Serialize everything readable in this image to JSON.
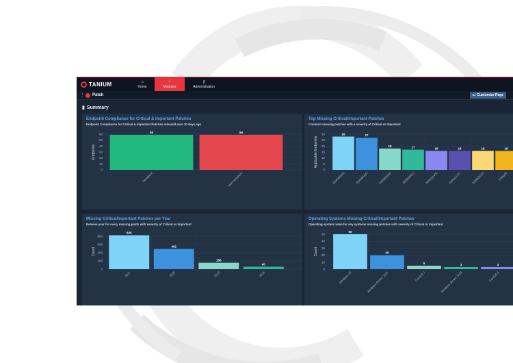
{
  "app": {
    "logo_text": "TANIUM",
    "nav": [
      {
        "label": "Home",
        "icon": "home-icon"
      },
      {
        "label": "Modules",
        "icon": "grid-icon"
      },
      {
        "label": "Administration",
        "icon": "key-icon"
      }
    ],
    "module_name": "Patch",
    "customize_label": "Customize Page",
    "section_title": "Summary"
  },
  "colors": {
    "accent": "#e8363f",
    "link": "#5aa3e6",
    "background": "#1b2433",
    "panel": "#243246"
  },
  "chart_data": [
    {
      "type": "bar",
      "title": "Endpoint Compliance for Critical & Important Patches",
      "subtitle": "Endpoint Compliance for Critical & Important Patches released over 30 days ago",
      "ylabel": "Endpoints",
      "xlabel": "",
      "ylim": [
        0,
        60
      ],
      "yticks": [
        0,
        10,
        20,
        30,
        40,
        50,
        60
      ],
      "categories": [
        "Compliant",
        "Non-compliant"
      ],
      "values": [
        59,
        59
      ],
      "colors": [
        "#22b97f",
        "#e5474f"
      ]
    },
    {
      "type": "bar",
      "title": "Top Missing Critical/Important Patches",
      "subtitle": "Common missing patches with a severity of Critical or Important",
      "ylabel": "Applicable Endpoints",
      "xlabel": "",
      "ylim": [
        0,
        30
      ],
      "yticks": [
        0,
        5,
        10,
        15,
        20,
        25,
        30
      ],
      "categories": [
        "KB4565503",
        "KB4565483",
        "KB5005565",
        "KB5005413",
        "KB5011406",
        "KB5014727",
        "KB5025314",
        "KB5004"
      ],
      "values": [
        28,
        27,
        18,
        17,
        16,
        16,
        16,
        16
      ],
      "colors": [
        "#7ed3f8",
        "#3d92de",
        "#86d8c8",
        "#2fb89a",
        "#8a88f0",
        "#5b4fb0",
        "#fbd876",
        "#f2b51c"
      ]
    },
    {
      "type": "bar",
      "title": "Missing Critical/Important Patches per Year",
      "subtitle": "Release year for every missing patch with severity of Critical or Important",
      "ylabel": "Count",
      "xlabel": "",
      "ylim": [
        0,
        850
      ],
      "yticks": [
        0,
        200,
        400,
        600,
        800
      ],
      "categories": [
        "2021",
        "2020",
        "2019",
        "2018"
      ],
      "values": [
        825,
        492,
        156,
        60
      ],
      "colors": [
        "#7ed3f8",
        "#3d92de",
        "#86d8c8",
        "#2fb89a"
      ]
    },
    {
      "type": "bar",
      "title": "Operating Systems Missing Critical/Important Patches",
      "subtitle": "Operating system name for any systems missing patches with severity of Critical or Important",
      "ylabel": "Count",
      "xlabel": "",
      "ylim": [
        0,
        50
      ],
      "yticks": [
        0,
        10,
        20,
        30,
        40,
        50
      ],
      "categories": [
        "Windows 10",
        "Windows Server 2016",
        "CentOS 7",
        "Windows Server 2019",
        "CentOS 8"
      ],
      "values": [
        50,
        20,
        5,
        3,
        3
      ],
      "colors": [
        "#7ed3f8",
        "#3d92de",
        "#86d8c8",
        "#2fb89a",
        "#8a88f0"
      ]
    }
  ]
}
